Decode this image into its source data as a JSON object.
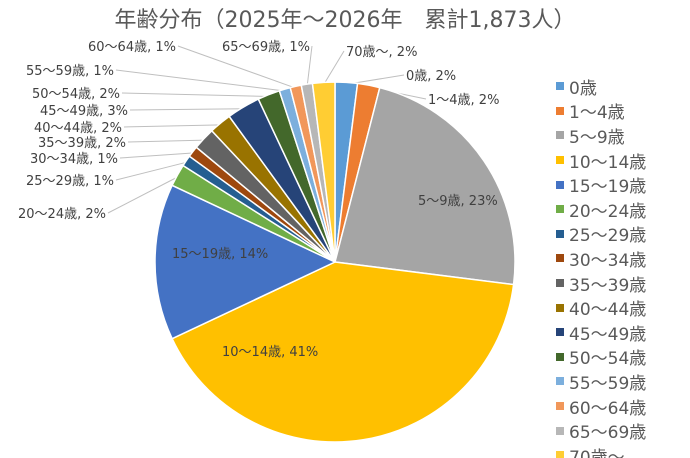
{
  "chart_data": {
    "type": "pie",
    "title": "年齢分布（2025年～2026年　累計1,873人）",
    "legend_position": "right",
    "slices": [
      {
        "name": "0歳",
        "value": 2,
        "label": "0歳, 2%",
        "color": "#5B9BD5"
      },
      {
        "name": "1～4歳",
        "value": 2,
        "label": "1～4歳, 2%",
        "color": "#ED7D31"
      },
      {
        "name": "5～9歳",
        "value": 23,
        "label": "5～9歳, 23%",
        "color": "#A5A5A5"
      },
      {
        "name": "10～14歳",
        "value": 41,
        "label": "10～14歳, 41%",
        "color": "#FFC000"
      },
      {
        "name": "15～19歳",
        "value": 14,
        "label": "15～19歳, 14%",
        "color": "#4472C4"
      },
      {
        "name": "20～24歳",
        "value": 2,
        "label": "20～24歳, 2%",
        "color": "#70AD47"
      },
      {
        "name": "25～29歳",
        "value": 1,
        "label": "25～29歳, 1%",
        "color": "#255E91"
      },
      {
        "name": "30～34歳",
        "value": 1,
        "label": "30～34歳, 1%",
        "color": "#9E480E"
      },
      {
        "name": "35～39歳",
        "value": 2,
        "label": "35～39歳, 2%",
        "color": "#636363"
      },
      {
        "name": "40～44歳",
        "value": 2,
        "label": "40～44歳, 2%",
        "color": "#997300"
      },
      {
        "name": "45～49歳",
        "value": 3,
        "label": "45～49歳, 3%",
        "color": "#264478"
      },
      {
        "name": "50～54歳",
        "value": 2,
        "label": "50～54歳, 2%",
        "color": "#43682B"
      },
      {
        "name": "55～59歳",
        "value": 1,
        "label": "55～59歳, 1%",
        "color": "#7CAFDD"
      },
      {
        "name": "60～64歳",
        "value": 1,
        "label": "60～64歳, 1%",
        "color": "#F1975A"
      },
      {
        "name": "65～69歳",
        "value": 1,
        "label": "65～69歳, 1%",
        "color": "#B7B7B7"
      },
      {
        "name": "70歳～",
        "value": 2,
        "label": "70歳～, 2%",
        "color": "#FFCD33"
      }
    ]
  }
}
